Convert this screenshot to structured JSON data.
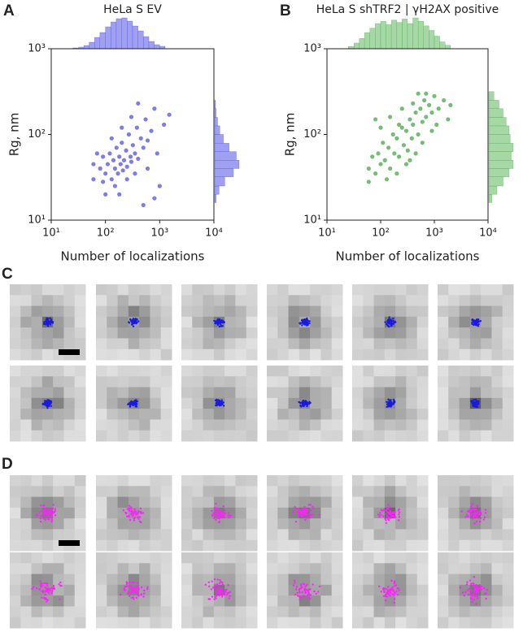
{
  "panel_labels": [
    "A",
    "B",
    "C",
    "D"
  ],
  "chart_data": [
    {
      "type": "scatter",
      "title": "HeLa S EV",
      "xlabel": "Number of localizations",
      "ylabel": "Rg, nm",
      "xscale": "log",
      "yscale": "log",
      "color": "#3535e0",
      "hist_color": "#a0a0f2",
      "xlim": [
        10,
        10000
      ],
      "ylim": [
        10,
        1000
      ],
      "xticks": [
        {
          "value": 10,
          "label": "10¹"
        },
        {
          "value": 100,
          "label": "10²"
        },
        {
          "value": 1000,
          "label": "10³"
        },
        {
          "value": 10000,
          "label": "10⁴"
        }
      ],
      "yticks": [
        {
          "value": 10,
          "label": "10¹"
        },
        {
          "value": 100,
          "label": "10²"
        },
        {
          "value": 1000,
          "label": "10³"
        }
      ],
      "x": [
        60,
        80,
        90,
        100,
        110,
        120,
        130,
        140,
        150,
        160,
        170,
        180,
        190,
        200,
        210,
        220,
        240,
        250,
        270,
        290,
        300,
        320,
        350,
        380,
        400,
        450,
        500,
        550,
        600,
        700,
        800,
        900,
        1000,
        1200,
        150,
        100,
        250,
        70,
        300,
        400,
        200,
        600,
        130,
        180,
        350,
        1500,
        60,
        500,
        800,
        90
      ],
      "y": [
        30,
        40,
        55,
        35,
        45,
        60,
        30,
        50,
        40,
        70,
        35,
        55,
        45,
        80,
        38,
        50,
        65,
        42,
        100,
        55,
        48,
        75,
        60,
        120,
        52,
        90,
        70,
        150,
        85,
        110,
        200,
        60,
        25,
        130,
        25,
        20,
        30,
        60,
        160,
        230,
        120,
        40,
        90,
        20,
        35,
        170,
        45,
        15,
        18,
        28
      ],
      "x_hist": {
        "bins": [
          25,
          32,
          40,
          50,
          63,
          79,
          100,
          126,
          158,
          200,
          251,
          316,
          398,
          501,
          631,
          794,
          1000,
          1259
        ],
        "counts": [
          1,
          2,
          4,
          8,
          14,
          20,
          27,
          33,
          37,
          38,
          34,
          28,
          22,
          15,
          9,
          5,
          3
        ]
      },
      "y_hist": {
        "bins": [
          16,
          20,
          25,
          32,
          40,
          50,
          63,
          79,
          100,
          126,
          158,
          200,
          251
        ],
        "counts": [
          2,
          6,
          14,
          26,
          34,
          30,
          20,
          12,
          7,
          4,
          2,
          1
        ]
      }
    },
    {
      "type": "scatter",
      "title": "HeLa S shTRF2 | γH2AX positive",
      "xlabel": "Number of localizations",
      "ylabel": "Rg, nm",
      "xscale": "log",
      "yscale": "log",
      "color": "#2a9a2a",
      "hist_color": "#a6d8a6",
      "xlim": [
        10,
        10000
      ],
      "ylim": [
        10,
        1000
      ],
      "xticks": [
        {
          "value": 10,
          "label": "10¹"
        },
        {
          "value": 100,
          "label": "10²"
        },
        {
          "value": 1000,
          "label": "10³"
        },
        {
          "value": 10000,
          "label": "10⁴"
        }
      ],
      "yticks": [
        {
          "value": 10,
          "label": "10¹"
        },
        {
          "value": 100,
          "label": "10²"
        },
        {
          "value": 1000,
          "label": "10³"
        }
      ],
      "x": [
        60,
        70,
        80,
        90,
        100,
        110,
        120,
        140,
        150,
        170,
        180,
        200,
        220,
        250,
        270,
        300,
        320,
        350,
        380,
        400,
        450,
        500,
        550,
        600,
        650,
        700,
        800,
        900,
        1000,
        1200,
        1500,
        2000,
        100,
        130,
        200,
        300,
        450,
        80,
        250,
        600,
        700,
        400,
        150,
        350,
        1100,
        500,
        60,
        220,
        900,
        1800
      ],
      "y": [
        40,
        55,
        35,
        60,
        45,
        80,
        50,
        70,
        40,
        100,
        60,
        90,
        55,
        120,
        75,
        110,
        65,
        150,
        90,
        130,
        180,
        100,
        200,
        140,
        250,
        160,
        220,
        180,
        280,
        200,
        250,
        220,
        120,
        30,
        35,
        45,
        60,
        150,
        200,
        80,
        300,
        230,
        160,
        50,
        130,
        300,
        28,
        130,
        110,
        150
      ],
      "x_hist": {
        "bins": [
          25,
          32,
          40,
          50,
          63,
          79,
          100,
          126,
          158,
          200,
          251,
          316,
          398,
          501,
          631,
          794,
          1000,
          1259,
          1585,
          1995
        ],
        "counts": [
          2,
          5,
          9,
          14,
          18,
          22,
          24,
          21,
          25,
          23,
          26,
          22,
          27,
          24,
          20,
          16,
          11,
          6,
          3
        ]
      },
      "y_hist": {
        "bins": [
          16,
          20,
          25,
          32,
          40,
          50,
          63,
          79,
          100,
          126,
          158,
          200,
          251,
          316
        ],
        "counts": [
          3,
          8,
          14,
          20,
          24,
          22,
          24,
          21,
          20,
          17,
          14,
          10,
          5
        ]
      }
    }
  ]
}
